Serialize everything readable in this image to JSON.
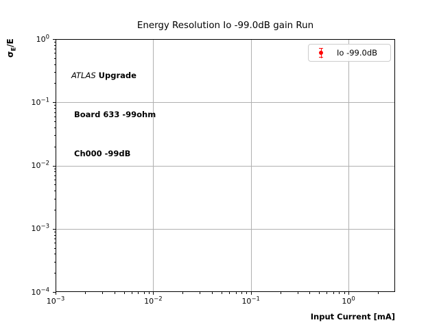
{
  "chart_data": {
    "type": "scatter",
    "title": "Energy Resolution Io -99.0dB gain Run",
    "xlabel": "Input Current [mA]",
    "ylabel": "σE/E",
    "ylabel_parts": {
      "symbol": "σ",
      "subscript": "E",
      "rest": "/E"
    },
    "xscale": "log",
    "yscale": "log",
    "xlim": [
      0.001,
      3
    ],
    "ylim": [
      0.0001,
      1
    ],
    "x_tick_exponents": [
      -3,
      -2,
      -1,
      0
    ],
    "y_tick_exponents": [
      0,
      -1,
      -2,
      -3,
      -4
    ],
    "grid": "major-both",
    "legend": {
      "location": "upper right",
      "entries": [
        {
          "label": "Io -99.0dB",
          "marker": "errorbar-circle",
          "color": "#ff0000"
        }
      ]
    },
    "series": [
      {
        "name": "Io -99.0dB",
        "x": [],
        "y": []
      }
    ],
    "annotation": {
      "lines": [
        {
          "italic": "ATLAS",
          "bold": " Upgrade"
        },
        {
          "bold": " Board 633 -99ohm"
        },
        {
          "bold": " Ch000 -99dB"
        }
      ]
    }
  },
  "colors": {
    "background": "#ffffff",
    "axes": "#000000",
    "grid": "#b0b0b0",
    "series": "#ff0000",
    "legend_border": "#cccccc",
    "text": "#000000"
  }
}
